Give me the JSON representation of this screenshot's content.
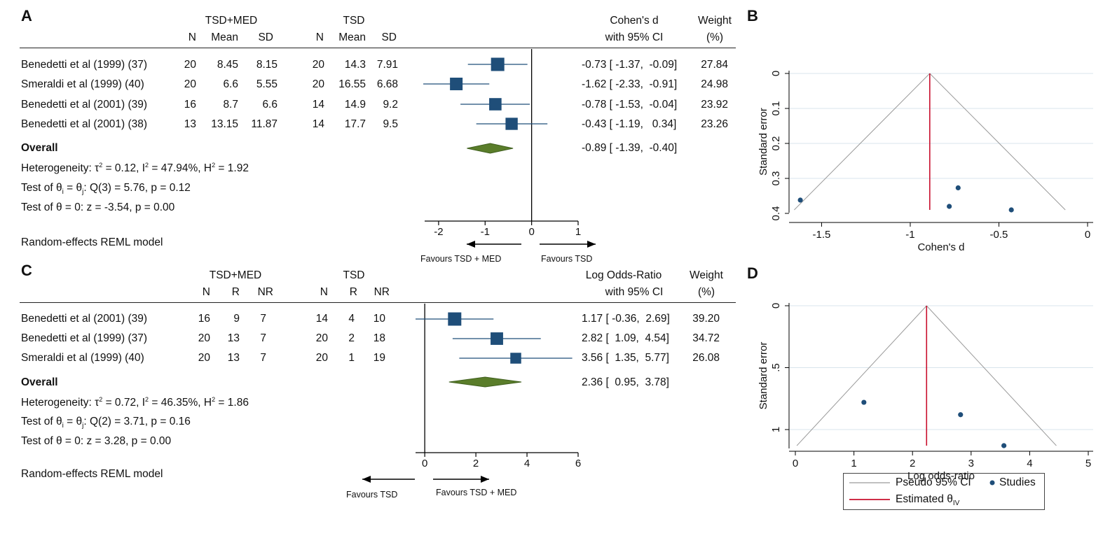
{
  "colors": {
    "marker": "#1f4e79",
    "diamond": "#5a7d2a",
    "diamond_stroke": "#3f5f1e",
    "funnel": "#9a9a9a",
    "estimate": "#c8102e",
    "grid": "#d8e4ec"
  },
  "panelA": {
    "letter": "A",
    "group1": "TSD+MED",
    "group2": "TSD",
    "cols1": [
      "N",
      "Mean",
      "SD"
    ],
    "cols2": [
      "N",
      "Mean",
      "SD"
    ],
    "effect_header": [
      "Cohen's d",
      "with 95% CI"
    ],
    "weight_header": [
      "Weight",
      "(%)"
    ],
    "studies": [
      {
        "name": "Benedetti et al (1999) (37)",
        "g1": [
          "20",
          "8.45",
          "8.15"
        ],
        "g2": [
          "20",
          "14.3",
          "7.91"
        ],
        "ci": "-0.73 [ -1.37,  -0.09]",
        "weight": "27.84"
      },
      {
        "name": "Smeraldi et al (1999) (40)",
        "g1": [
          "20",
          "6.6",
          "5.55"
        ],
        "g2": [
          "20",
          "16.55",
          "6.68"
        ],
        "ci": "-1.62 [ -2.33,  -0.91]",
        "weight": "24.98"
      },
      {
        "name": "Benedetti et al (2001) (39)",
        "g1": [
          "16",
          "8.7",
          "6.6"
        ],
        "g2": [
          "14",
          "14.9",
          "9.2"
        ],
        "ci": "-0.78 [ -1.53,  -0.04]",
        "weight": "23.92"
      },
      {
        "name": "Benedetti et al (2001) (38)",
        "g1": [
          "13",
          "13.15",
          "11.87"
        ],
        "g2": [
          "14",
          "17.7",
          "9.5"
        ],
        "ci": "-0.43 [ -1.19,   0.34]",
        "weight": "23.26"
      }
    ],
    "overall_label": "Overall",
    "overall_ci": "-0.89 [ -1.39,  -0.40]",
    "heterogeneity": {
      "a": "Heterogeneity: τ",
      "b": " = 0.12, I",
      "c": " = 47.94%, H",
      "d": " = 1.92",
      "sup": "2"
    },
    "test1": {
      "a": "Test of θ",
      "s1": "i",
      "b": " = θ",
      "s2": "j",
      "c": ": Q(3) = 5.76, p = 0.12"
    },
    "test2": "Test of θ = 0: z = -3.54, p = 0.00",
    "model": "Random-effects REML model",
    "favours_left": "Favours TSD + MED",
    "favours_right": "Favours TSD"
  },
  "panelC": {
    "letter": "C",
    "group1": "TSD+MED",
    "group2": "TSD",
    "cols1": [
      "N",
      "R",
      "NR"
    ],
    "cols2": [
      "N",
      "R",
      "NR"
    ],
    "effect_header": [
      "Log Odds-Ratio",
      "with 95% CI"
    ],
    "weight_header": [
      "Weight",
      "(%)"
    ],
    "studies": [
      {
        "name": "Benedetti et al (2001) (39)",
        "g1": [
          "16",
          "9",
          "7"
        ],
        "g2": [
          "14",
          "4",
          "10"
        ],
        "ci": "1.17 [ -0.36,  2.69]",
        "weight": "39.20"
      },
      {
        "name": "Benedetti et al (1999) (37)",
        "g1": [
          "20",
          "13",
          "7"
        ],
        "g2": [
          "20",
          "2",
          "18"
        ],
        "ci": "2.82 [  1.09,  4.54]",
        "weight": "34.72"
      },
      {
        "name": "Smeraldi et al (1999) (40)",
        "g1": [
          "20",
          "13",
          "7"
        ],
        "g2": [
          "20",
          "1",
          "19"
        ],
        "ci": "3.56 [  1.35,  5.77]",
        "weight": "26.08"
      }
    ],
    "overall_label": "Overall",
    "overall_ci": "2.36 [  0.95,  3.78]",
    "heterogeneity": {
      "a": "Heterogeneity: τ",
      "b": " = 0.72, I",
      "c": " = 46.35%, H",
      "d": " = 1.86",
      "sup": "2"
    },
    "test1": {
      "a": "Test of θ",
      "s1": "i",
      "b": " = θ",
      "s2": "j",
      "c": ": Q(2) = 3.71, p = 0.16"
    },
    "test2": "Test of θ = 0: z = 3.28, p = 0.00",
    "model": "Random-effects REML model",
    "favours_left": "Favours TSD",
    "favours_right": "Favours TSD + MED"
  },
  "panelB": {
    "letter": "B"
  },
  "panelD": {
    "letter": "D"
  },
  "legend": {
    "pseudo": "Pseudo 95% CI",
    "studies": "Studies",
    "estimated": "Estimated θ",
    "estimated_sub": "IV"
  },
  "chart_data": [
    {
      "id": "A",
      "type": "forest",
      "categories": [
        "Benedetti et al (1999) (37)",
        "Smeraldi et al (1999) (40)",
        "Benedetti et al (2001) (39)",
        "Benedetti et al (2001) (38)"
      ],
      "estimates": [
        -0.73,
        -1.62,
        -0.78,
        -0.43
      ],
      "lower": [
        -1.37,
        -2.33,
        -1.53,
        -1.19
      ],
      "upper": [
        -0.09,
        -0.91,
        -0.04,
        0.34
      ],
      "weights": [
        27.84,
        24.98,
        23.92,
        23.26
      ],
      "overall": {
        "estimate": -0.89,
        "lower": -1.39,
        "upper": -0.4
      },
      "xlim": [
        -2.3,
        1
      ],
      "xticks": [
        -2,
        -1,
        0,
        1
      ],
      "xtick_labels": [
        "-2",
        "-1",
        "0",
        "1"
      ],
      "ref_line": 0
    },
    {
      "id": "B",
      "type": "scatter",
      "subtype": "funnel",
      "xlabel": "Cohen's d",
      "ylabel": "Standard error",
      "xlim": [
        -1.65,
        0
      ],
      "xticks": [
        -1.5,
        -1,
        -0.5,
        0
      ],
      "xtick_labels": [
        "-1.5",
        "-1",
        "-0.5",
        "0"
      ],
      "ylim": [
        0,
        0.39
      ],
      "yticks": [
        0,
        0.1,
        0.2,
        0.3,
        0.4
      ],
      "ytick_labels": [
        "0",
        "0.1",
        "0.2",
        "0.3",
        "0.4"
      ],
      "y_reversed": true,
      "grid": true,
      "x": [
        -1.62,
        -0.73,
        -0.78,
        -0.43
      ],
      "y": [
        0.362,
        0.327,
        0.38,
        0.39
      ],
      "estimate": -0.89,
      "funnel_se_max": 0.39
    },
    {
      "id": "C",
      "type": "forest",
      "categories": [
        "Benedetti et al (2001) (39)",
        "Benedetti et al (1999) (37)",
        "Smeraldi et al (1999) (40)"
      ],
      "estimates": [
        1.17,
        2.82,
        3.56
      ],
      "lower": [
        -0.36,
        1.09,
        1.35
      ],
      "upper": [
        2.69,
        4.54,
        5.77
      ],
      "weights": [
        39.2,
        34.72,
        26.08
      ],
      "overall": {
        "estimate": 2.36,
        "lower": 0.95,
        "upper": 3.78
      },
      "xlim": [
        -0.36,
        6
      ],
      "xticks": [
        0,
        2,
        4,
        6
      ],
      "xtick_labels": [
        "0",
        "2",
        "4",
        "6"
      ],
      "ref_line": 0
    },
    {
      "id": "D",
      "type": "scatter",
      "subtype": "funnel",
      "xlabel": "Log odds-ratio",
      "ylabel": "Standard error",
      "xlim": [
        0,
        5
      ],
      "xticks": [
        0,
        1,
        2,
        3,
        4,
        5
      ],
      "xtick_labels": [
        "0",
        "1",
        "2",
        "3",
        "4",
        "5"
      ],
      "ylim": [
        0,
        1.13
      ],
      "yticks": [
        0,
        0.5,
        1
      ],
      "ytick_labels": [
        "0",
        ".5",
        "1"
      ],
      "y_reversed": true,
      "grid": true,
      "x": [
        1.17,
        2.82,
        3.56
      ],
      "y": [
        0.78,
        0.88,
        1.13
      ],
      "estimate": 2.24,
      "funnel_se_max": 1.13
    }
  ]
}
